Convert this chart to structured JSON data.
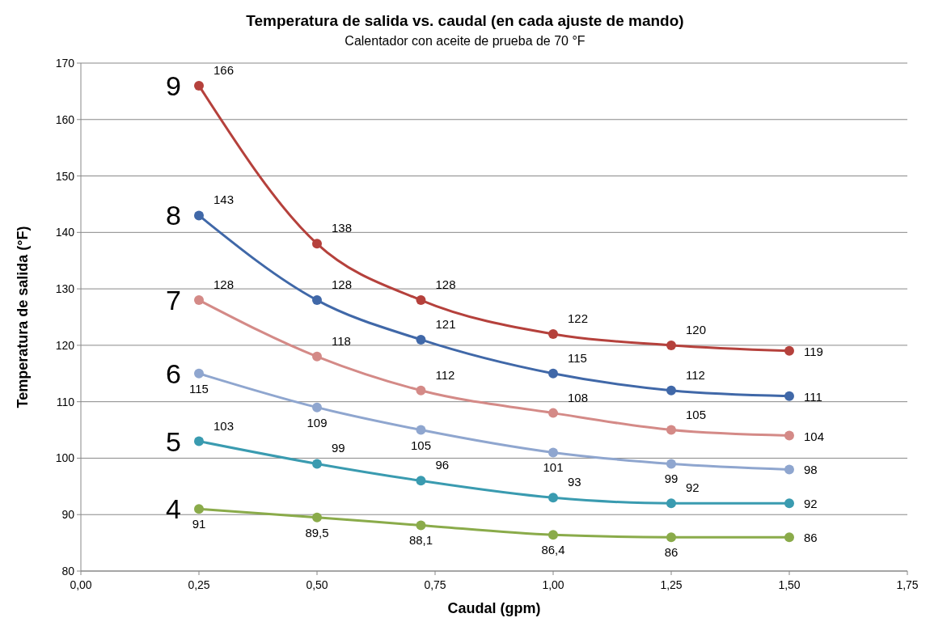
{
  "chart_data": {
    "type": "line",
    "title": "Temperatura de salida vs. caudal (en cada ajuste de mando)",
    "subtitle": "Calentador con aceite de prueba de 70 °F",
    "xlabel": "Caudal (gpm)",
    "ylabel": "Temperatura de salida (°F)",
    "x": [
      0.25,
      0.5,
      0.72,
      1.0,
      1.25,
      1.5
    ],
    "xlim": [
      0,
      1.75
    ],
    "xticks": [
      {
        "value": 0,
        "label": "0,00"
      },
      {
        "value": 0.25,
        "label": "0,25"
      },
      {
        "value": 0.5,
        "label": "0,50"
      },
      {
        "value": 0.75,
        "label": "0,75"
      },
      {
        "value": 1,
        "label": "1,00"
      },
      {
        "value": 1.25,
        "label": "1,25"
      },
      {
        "value": 1.5,
        "label": "1,50"
      },
      {
        "value": 1.75,
        "label": "1,75"
      }
    ],
    "ylim": [
      80,
      170
    ],
    "yticks": [
      80,
      90,
      100,
      110,
      120,
      130,
      140,
      150,
      160,
      170
    ],
    "grid": "y",
    "marker": "circle",
    "line_style": "solid",
    "series": [
      {
        "name": "9",
        "color": "#b5413c",
        "values": [
          166,
          138,
          128,
          122,
          120,
          119
        ],
        "value_labels": [
          "166",
          "138",
          "128",
          "122",
          "120",
          "119"
        ]
      },
      {
        "name": "8",
        "color": "#4068a8",
        "values": [
          143,
          128,
          121,
          115,
          112,
          111
        ],
        "value_labels": [
          "143",
          "128",
          "121",
          "115",
          "112",
          "111"
        ]
      },
      {
        "name": "7",
        "color": "#d48a87",
        "values": [
          128,
          118,
          112,
          108,
          105,
          104
        ],
        "value_labels": [
          "128",
          "118",
          "112",
          "108",
          "105",
          "104"
        ]
      },
      {
        "name": "6",
        "color": "#8fa6cf",
        "values": [
          115,
          109,
          105,
          101,
          99,
          98
        ],
        "value_labels": [
          "115",
          "109",
          "105",
          "101",
          "99",
          "98"
        ]
      },
      {
        "name": "5",
        "color": "#3a9bb0",
        "values": [
          103,
          99,
          96,
          93,
          92,
          92
        ],
        "value_labels": [
          "103",
          "99",
          "96",
          "93",
          "92",
          "92"
        ]
      },
      {
        "name": "4",
        "color": "#8aab4a",
        "values": [
          91,
          89.5,
          88.1,
          86.4,
          86,
          86
        ],
        "value_labels": [
          "91",
          "89,5",
          "88,1",
          "86,4",
          "86",
          "86"
        ]
      }
    ]
  }
}
